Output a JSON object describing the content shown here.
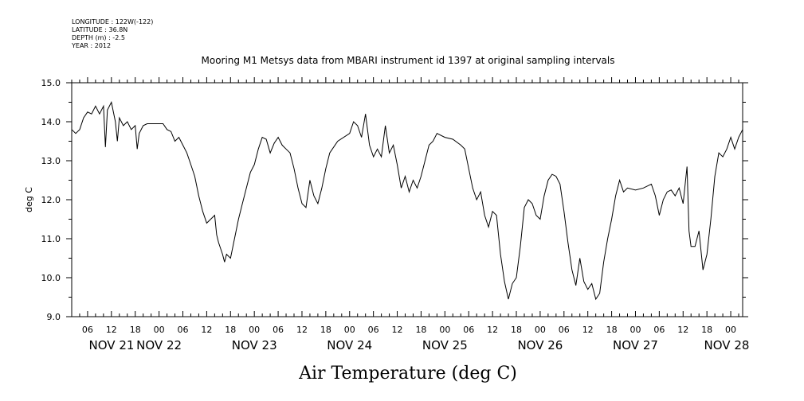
{
  "meta": {
    "longitude": "LONGITUDE : 122W(-122)",
    "latitude": "LATITUDE : 36.8N",
    "depth": "DEPTH (m) : -2.5",
    "year": "YEAR : 2012"
  },
  "chart_data": {
    "type": "line",
    "title": "Mooring M1 Metsys data from MBARI instrument id 1397 at original sampling intervals",
    "xlabel": "Air Temperature (deg C)",
    "ylabel": "deg C",
    "ylim": [
      9.0,
      15.0
    ],
    "y_ticks": [
      "9.0",
      "10.0",
      "11.0",
      "12.0",
      "13.0",
      "14.0",
      "15.0"
    ],
    "xlim": [
      "2012-11-21T02:00",
      "2012-11-28T03:00"
    ],
    "x_hour_labels": [
      {
        "t": "2012-11-21T06:00",
        "label": "06"
      },
      {
        "t": "2012-11-21T12:00",
        "label": "12"
      },
      {
        "t": "2012-11-21T18:00",
        "label": "18"
      },
      {
        "t": "2012-11-22T00:00",
        "label": "00"
      },
      {
        "t": "2012-11-22T06:00",
        "label": "06"
      },
      {
        "t": "2012-11-22T12:00",
        "label": "12"
      },
      {
        "t": "2012-11-22T18:00",
        "label": "18"
      },
      {
        "t": "2012-11-23T00:00",
        "label": "00"
      },
      {
        "t": "2012-11-23T06:00",
        "label": "06"
      },
      {
        "t": "2012-11-23T12:00",
        "label": "12"
      },
      {
        "t": "2012-11-23T18:00",
        "label": "18"
      },
      {
        "t": "2012-11-24T00:00",
        "label": "00"
      },
      {
        "t": "2012-11-24T06:00",
        "label": "06"
      },
      {
        "t": "2012-11-24T12:00",
        "label": "12"
      },
      {
        "t": "2012-11-24T18:00",
        "label": "18"
      },
      {
        "t": "2012-11-25T00:00",
        "label": "00"
      },
      {
        "t": "2012-11-25T06:00",
        "label": "06"
      },
      {
        "t": "2012-11-25T12:00",
        "label": "12"
      },
      {
        "t": "2012-11-25T18:00",
        "label": "18"
      },
      {
        "t": "2012-11-26T00:00",
        "label": "00"
      },
      {
        "t": "2012-11-26T06:00",
        "label": "06"
      },
      {
        "t": "2012-11-26T12:00",
        "label": "12"
      },
      {
        "t": "2012-11-26T18:00",
        "label": "18"
      },
      {
        "t": "2012-11-27T00:00",
        "label": "00"
      },
      {
        "t": "2012-11-27T06:00",
        "label": "06"
      },
      {
        "t": "2012-11-27T12:00",
        "label": "12"
      },
      {
        "t": "2012-11-27T18:00",
        "label": "18"
      },
      {
        "t": "2012-11-28T00:00",
        "label": "00"
      }
    ],
    "x_day_labels": [
      {
        "t": "2012-11-21T00:00",
        "label": "NOV 21"
      },
      {
        "t": "2012-11-22T00:00",
        "label": "NOV 22"
      },
      {
        "t": "2012-11-23T00:00",
        "label": "NOV 23"
      },
      {
        "t": "2012-11-24T00:00",
        "label": "NOV 24"
      },
      {
        "t": "2012-11-25T00:00",
        "label": "NOV 25"
      },
      {
        "t": "2012-11-26T00:00",
        "label": "NOV 26"
      },
      {
        "t": "2012-11-27T00:00",
        "label": "NOV 27"
      },
      {
        "t": "2012-11-28T00:00",
        "label": "NOV 28"
      }
    ],
    "series": [
      {
        "color": "#000000",
        "points": [
          [
            "2012-11-21T02:00",
            13.8
          ],
          [
            "2012-11-21T03:00",
            13.7
          ],
          [
            "2012-11-21T04:00",
            13.8
          ],
          [
            "2012-11-21T05:00",
            14.1
          ],
          [
            "2012-11-21T06:00",
            14.25
          ],
          [
            "2012-11-21T07:00",
            14.2
          ],
          [
            "2012-11-21T08:00",
            14.4
          ],
          [
            "2012-11-21T09:00",
            14.2
          ],
          [
            "2012-11-21T10:00",
            14.4
          ],
          [
            "2012-11-21T10:30",
            13.35
          ],
          [
            "2012-11-21T11:00",
            14.3
          ],
          [
            "2012-11-21T12:00",
            14.5
          ],
          [
            "2012-11-21T13:00",
            14.0
          ],
          [
            "2012-11-21T13:30",
            13.5
          ],
          [
            "2012-11-21T14:00",
            14.1
          ],
          [
            "2012-11-21T15:00",
            13.9
          ],
          [
            "2012-11-21T16:00",
            14.0
          ],
          [
            "2012-11-21T17:00",
            13.8
          ],
          [
            "2012-11-21T18:00",
            13.9
          ],
          [
            "2012-11-21T18:30",
            13.3
          ],
          [
            "2012-11-21T19:00",
            13.7
          ],
          [
            "2012-11-21T20:00",
            13.9
          ],
          [
            "2012-11-21T21:00",
            13.95
          ],
          [
            "2012-11-22T00:00",
            13.95
          ],
          [
            "2012-11-22T01:00",
            13.95
          ],
          [
            "2012-11-22T02:00",
            13.8
          ],
          [
            "2012-11-22T03:00",
            13.75
          ],
          [
            "2012-11-22T04:00",
            13.5
          ],
          [
            "2012-11-22T05:00",
            13.6
          ],
          [
            "2012-11-22T06:00",
            13.4
          ],
          [
            "2012-11-22T07:00",
            13.2
          ],
          [
            "2012-11-22T08:00",
            12.9
          ],
          [
            "2012-11-22T09:00",
            12.6
          ],
          [
            "2012-11-22T10:00",
            12.1
          ],
          [
            "2012-11-22T11:00",
            11.7
          ],
          [
            "2012-11-22T12:00",
            11.4
          ],
          [
            "2012-11-22T13:00",
            11.5
          ],
          [
            "2012-11-22T14:00",
            11.6
          ],
          [
            "2012-11-22T14:30",
            11.1
          ],
          [
            "2012-11-22T15:00",
            10.9
          ],
          [
            "2012-11-22T16:00",
            10.6
          ],
          [
            "2012-11-22T16:30",
            10.4
          ],
          [
            "2012-11-22T17:00",
            10.6
          ],
          [
            "2012-11-22T18:00",
            10.5
          ],
          [
            "2012-11-22T19:00",
            11.0
          ],
          [
            "2012-11-22T20:00",
            11.5
          ],
          [
            "2012-11-22T21:00",
            11.9
          ],
          [
            "2012-11-22T22:00",
            12.3
          ],
          [
            "2012-11-22T23:00",
            12.7
          ],
          [
            "2012-11-23T00:00",
            12.9
          ],
          [
            "2012-11-23T01:00",
            13.3
          ],
          [
            "2012-11-23T02:00",
            13.6
          ],
          [
            "2012-11-23T03:00",
            13.55
          ],
          [
            "2012-11-23T04:00",
            13.2
          ],
          [
            "2012-11-23T05:00",
            13.45
          ],
          [
            "2012-11-23T06:00",
            13.6
          ],
          [
            "2012-11-23T07:00",
            13.4
          ],
          [
            "2012-11-23T08:00",
            13.3
          ],
          [
            "2012-11-23T09:00",
            13.2
          ],
          [
            "2012-11-23T10:00",
            12.8
          ],
          [
            "2012-11-23T11:00",
            12.3
          ],
          [
            "2012-11-23T12:00",
            11.9
          ],
          [
            "2012-11-23T13:00",
            11.8
          ],
          [
            "2012-11-23T14:00",
            12.5
          ],
          [
            "2012-11-23T15:00",
            12.1
          ],
          [
            "2012-11-23T16:00",
            11.9
          ],
          [
            "2012-11-23T17:00",
            12.3
          ],
          [
            "2012-11-23T18:00",
            12.8
          ],
          [
            "2012-11-23T19:00",
            13.2
          ],
          [
            "2012-11-23T20:00",
            13.35
          ],
          [
            "2012-11-23T21:00",
            13.5
          ],
          [
            "2012-11-24T00:00",
            13.7
          ],
          [
            "2012-11-24T01:00",
            14.0
          ],
          [
            "2012-11-24T02:00",
            13.9
          ],
          [
            "2012-11-24T03:00",
            13.6
          ],
          [
            "2012-11-24T04:00",
            14.2
          ],
          [
            "2012-11-24T05:00",
            13.4
          ],
          [
            "2012-11-24T06:00",
            13.1
          ],
          [
            "2012-11-24T07:00",
            13.3
          ],
          [
            "2012-11-24T08:00",
            13.1
          ],
          [
            "2012-11-24T09:00",
            13.9
          ],
          [
            "2012-11-24T10:00",
            13.2
          ],
          [
            "2012-11-24T11:00",
            13.4
          ],
          [
            "2012-11-24T12:00",
            12.9
          ],
          [
            "2012-11-24T13:00",
            12.3
          ],
          [
            "2012-11-24T14:00",
            12.6
          ],
          [
            "2012-11-24T15:00",
            12.2
          ],
          [
            "2012-11-24T16:00",
            12.5
          ],
          [
            "2012-11-24T17:00",
            12.3
          ],
          [
            "2012-11-24T18:00",
            12.6
          ],
          [
            "2012-11-24T19:00",
            13.0
          ],
          [
            "2012-11-24T20:00",
            13.4
          ],
          [
            "2012-11-24T21:00",
            13.5
          ],
          [
            "2012-11-24T22:00",
            13.7
          ],
          [
            "2012-11-25T00:00",
            13.6
          ],
          [
            "2012-11-25T02:00",
            13.55
          ],
          [
            "2012-11-25T04:00",
            13.4
          ],
          [
            "2012-11-25T05:00",
            13.3
          ],
          [
            "2012-11-25T06:00",
            12.8
          ],
          [
            "2012-11-25T07:00",
            12.3
          ],
          [
            "2012-11-25T08:00",
            12.0
          ],
          [
            "2012-11-25T09:00",
            12.2
          ],
          [
            "2012-11-25T10:00",
            11.6
          ],
          [
            "2012-11-25T11:00",
            11.3
          ],
          [
            "2012-11-25T12:00",
            11.7
          ],
          [
            "2012-11-25T13:00",
            11.6
          ],
          [
            "2012-11-25T14:00",
            10.6
          ],
          [
            "2012-11-25T15:00",
            9.9
          ],
          [
            "2012-11-25T16:00",
            9.45
          ],
          [
            "2012-11-25T17:00",
            9.85
          ],
          [
            "2012-11-25T18:00",
            10.0
          ],
          [
            "2012-11-25T19:00",
            10.8
          ],
          [
            "2012-11-25T20:00",
            11.8
          ],
          [
            "2012-11-25T21:00",
            12.0
          ],
          [
            "2012-11-25T22:00",
            11.9
          ],
          [
            "2012-11-25T23:00",
            11.6
          ],
          [
            "2012-11-26T00:00",
            11.5
          ],
          [
            "2012-11-26T01:00",
            12.1
          ],
          [
            "2012-11-26T02:00",
            12.5
          ],
          [
            "2012-11-26T03:00",
            12.65
          ],
          [
            "2012-11-26T04:00",
            12.6
          ],
          [
            "2012-11-26T05:00",
            12.4
          ],
          [
            "2012-11-26T06:00",
            11.7
          ],
          [
            "2012-11-26T07:00",
            10.9
          ],
          [
            "2012-11-26T08:00",
            10.2
          ],
          [
            "2012-11-26T09:00",
            9.8
          ],
          [
            "2012-11-26T10:00",
            10.5
          ],
          [
            "2012-11-26T11:00",
            9.9
          ],
          [
            "2012-11-26T12:00",
            9.7
          ],
          [
            "2012-11-26T13:00",
            9.85
          ],
          [
            "2012-11-26T14:00",
            9.45
          ],
          [
            "2012-11-26T15:00",
            9.6
          ],
          [
            "2012-11-26T16:00",
            10.4
          ],
          [
            "2012-11-26T17:00",
            11.0
          ],
          [
            "2012-11-26T18:00",
            11.5
          ],
          [
            "2012-11-26T19:00",
            12.1
          ],
          [
            "2012-11-26T20:00",
            12.5
          ],
          [
            "2012-11-26T21:00",
            12.2
          ],
          [
            "2012-11-26T22:00",
            12.3
          ],
          [
            "2012-11-27T00:00",
            12.25
          ],
          [
            "2012-11-27T02:00",
            12.3
          ],
          [
            "2012-11-27T04:00",
            12.4
          ],
          [
            "2012-11-27T05:00",
            12.1
          ],
          [
            "2012-11-27T06:00",
            11.6
          ],
          [
            "2012-11-27T07:00",
            12.0
          ],
          [
            "2012-11-27T08:00",
            12.2
          ],
          [
            "2012-11-27T09:00",
            12.25
          ],
          [
            "2012-11-27T10:00",
            12.1
          ],
          [
            "2012-11-27T11:00",
            12.3
          ],
          [
            "2012-11-27T12:00",
            11.9
          ],
          [
            "2012-11-27T13:00",
            12.85
          ],
          [
            "2012-11-27T13:30",
            11.2
          ],
          [
            "2012-11-27T14:00",
            10.8
          ],
          [
            "2012-11-27T15:00",
            10.8
          ],
          [
            "2012-11-27T16:00",
            11.2
          ],
          [
            "2012-11-27T17:00",
            10.2
          ],
          [
            "2012-11-27T18:00",
            10.6
          ],
          [
            "2012-11-27T19:00",
            11.5
          ],
          [
            "2012-11-27T20:00",
            12.6
          ],
          [
            "2012-11-27T21:00",
            13.2
          ],
          [
            "2012-11-27T22:00",
            13.1
          ],
          [
            "2012-11-27T23:00",
            13.3
          ],
          [
            "2012-11-28T00:00",
            13.6
          ],
          [
            "2012-11-28T01:00",
            13.3
          ],
          [
            "2012-11-28T02:00",
            13.6
          ],
          [
            "2012-11-28T03:00",
            13.8
          ]
        ]
      }
    ]
  }
}
